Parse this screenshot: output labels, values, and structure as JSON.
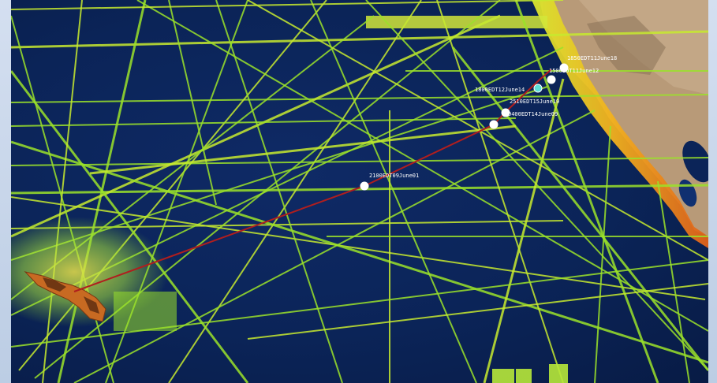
{
  "map": {
    "colors": {
      "ocean": "#0b2458",
      "track_main": "#9be22a",
      "track_alt": "#c7ea2f",
      "coast_high": "#f0a21c",
      "coast_peak": "#e05a1a",
      "land": "#b89a78",
      "transit_line": "#b01e1e",
      "waypoint": "#ffffff",
      "ship_marker": "#5ee0d8"
    },
    "waypoint_labels": [
      "1850EDT11June18",
      "1500EDT11June12",
      "1800EDT12June14",
      "2510EDT15June19",
      "0400EDT14June09",
      "2100EDT09June01"
    ]
  }
}
